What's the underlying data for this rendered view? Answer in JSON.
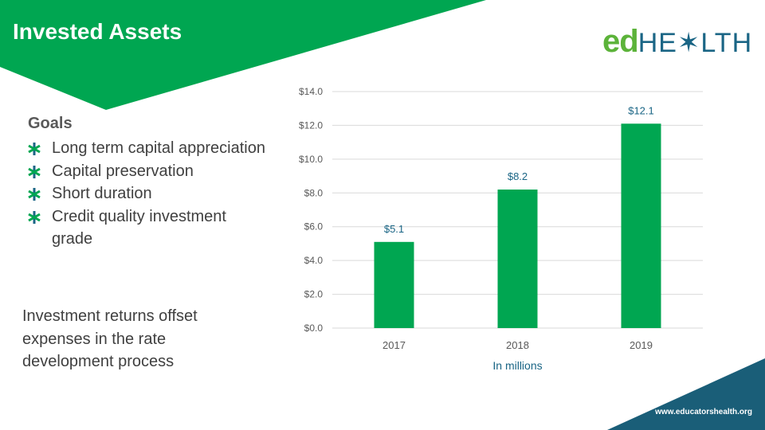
{
  "slide": {
    "title": "Invested Assets",
    "url": "www.educatorshealth.org"
  },
  "logo": {
    "ed": "ed",
    "he": "HE",
    "x": "✶",
    "lth": "LTH"
  },
  "goals": {
    "heading": "Goals",
    "items": [
      "Long term capital appreciation",
      "Capital preservation",
      "Short duration",
      "Credit quality investment grade"
    ]
  },
  "note": "Investment returns offset expenses in the rate development process",
  "colors": {
    "green": "#00a651",
    "teal": "#1a6585",
    "bar": "#00a651",
    "gridline": "#d9d9d9"
  },
  "chart_data": {
    "type": "bar",
    "categories": [
      "2017",
      "2018",
      "2019"
    ],
    "values": [
      5.1,
      8.2,
      12.1
    ],
    "data_labels": [
      "$5.1",
      "$8.2",
      "$12.1"
    ],
    "ytick_labels": [
      "$0.0",
      "$2.0",
      "$4.0",
      "$6.0",
      "$8.0",
      "$10.0",
      "$12.0",
      "$14.0"
    ],
    "ylim": [
      0,
      14
    ],
    "xlabel": "In millions",
    "ylabel": "",
    "grid": true
  }
}
